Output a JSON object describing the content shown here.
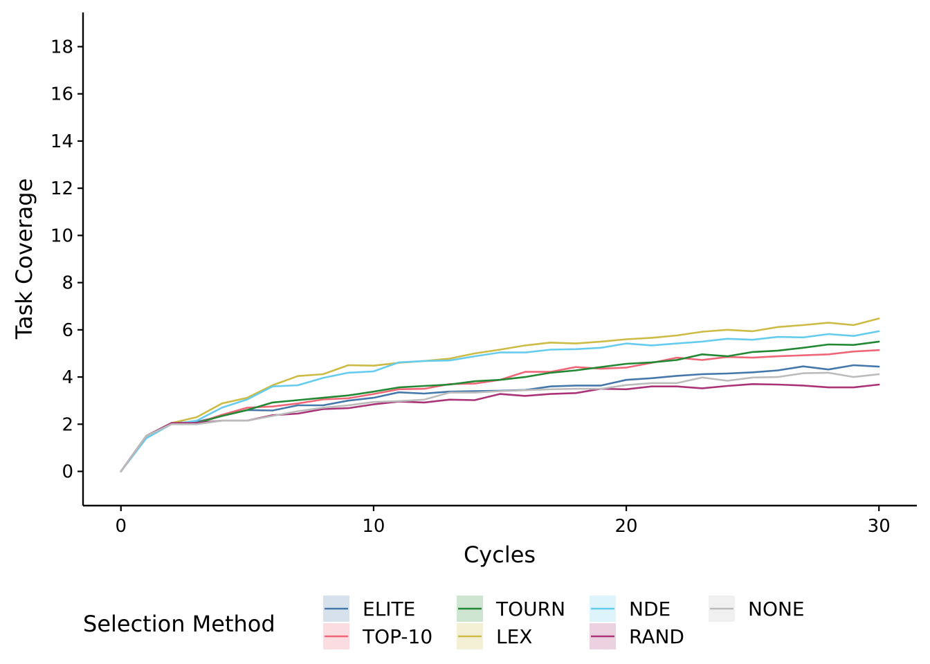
{
  "chart_data": {
    "type": "line",
    "xlabel": "Cycles",
    "ylabel": "Task Coverage",
    "xlim": [
      -1.5,
      31.5
    ],
    "ylim": [
      -1.45,
      19.45
    ],
    "x_ticks": [
      0,
      10,
      20,
      30
    ],
    "y_ticks": [
      0,
      2,
      4,
      6,
      8,
      10,
      12,
      14,
      16,
      18
    ],
    "grid": false,
    "legend_title": "Selection Method",
    "legend_position": "bottom",
    "x": [
      0,
      1,
      2,
      3,
      4,
      5,
      6,
      7,
      8,
      9,
      10,
      11,
      12,
      13,
      14,
      15,
      16,
      17,
      18,
      19,
      20,
      21,
      22,
      23,
      24,
      25,
      26,
      27,
      28,
      29,
      30
    ],
    "series": [
      {
        "name": "ELITE",
        "color": "#4477AA",
        "values": [
          0,
          1.5,
          2.05,
          2.1,
          2.35,
          2.6,
          2.58,
          2.8,
          2.8,
          3.0,
          3.12,
          3.35,
          3.3,
          3.38,
          3.4,
          3.42,
          3.45,
          3.6,
          3.64,
          3.64,
          3.88,
          3.95,
          4.05,
          4.12,
          4.15,
          4.2,
          4.28,
          4.45,
          4.32,
          4.5,
          4.44
        ]
      },
      {
        "name": "TOP-10",
        "color": "#EE6677",
        "values": [
          0,
          1.5,
          2.05,
          2.05,
          2.4,
          2.7,
          2.75,
          2.88,
          3.05,
          3.1,
          3.28,
          3.48,
          3.5,
          3.7,
          3.72,
          3.88,
          4.22,
          4.22,
          4.42,
          4.35,
          4.4,
          4.6,
          4.82,
          4.72,
          4.85,
          4.82,
          4.88,
          4.92,
          4.96,
          5.08,
          5.14
        ]
      },
      {
        "name": "TOURN",
        "color": "#228833",
        "values": [
          0,
          1.5,
          2.05,
          2.05,
          2.35,
          2.6,
          2.92,
          3.02,
          3.12,
          3.22,
          3.38,
          3.56,
          3.62,
          3.68,
          3.82,
          3.88,
          4.0,
          4.18,
          4.28,
          4.42,
          4.56,
          4.62,
          4.72,
          4.96,
          4.88,
          5.06,
          5.12,
          5.24,
          5.38,
          5.36,
          5.5
        ]
      },
      {
        "name": "LEX",
        "color": "#CCBB44",
        "values": [
          0,
          1.45,
          2.05,
          2.3,
          2.88,
          3.12,
          3.65,
          4.04,
          4.12,
          4.5,
          4.48,
          4.6,
          4.68,
          4.78,
          5.0,
          5.16,
          5.34,
          5.46,
          5.42,
          5.5,
          5.6,
          5.66,
          5.76,
          5.92,
          6.0,
          5.94,
          6.12,
          6.2,
          6.3,
          6.2,
          6.48
        ]
      },
      {
        "name": "NDE",
        "color": "#66CCEE",
        "values": [
          0,
          1.4,
          2.0,
          2.15,
          2.7,
          3.05,
          3.6,
          3.65,
          3.96,
          4.18,
          4.24,
          4.62,
          4.68,
          4.7,
          4.88,
          5.04,
          5.04,
          5.16,
          5.18,
          5.24,
          5.42,
          5.34,
          5.42,
          5.5,
          5.62,
          5.58,
          5.7,
          5.68,
          5.82,
          5.74,
          5.94
        ]
      },
      {
        "name": "RAND",
        "color": "#AA3377",
        "values": [
          0,
          1.5,
          2.05,
          2.05,
          2.15,
          2.15,
          2.38,
          2.45,
          2.64,
          2.68,
          2.84,
          2.96,
          2.92,
          3.04,
          3.02,
          3.28,
          3.2,
          3.28,
          3.32,
          3.5,
          3.48,
          3.6,
          3.6,
          3.52,
          3.62,
          3.7,
          3.68,
          3.64,
          3.56,
          3.56,
          3.68
        ]
      },
      {
        "name": "NONE",
        "color": "#BBBBBB",
        "values": [
          0,
          1.5,
          2.0,
          2.0,
          2.15,
          2.15,
          2.35,
          2.55,
          2.7,
          2.8,
          2.94,
          2.98,
          3.04,
          3.34,
          3.34,
          3.4,
          3.44,
          3.48,
          3.5,
          3.5,
          3.66,
          3.74,
          3.74,
          3.98,
          3.84,
          3.98,
          4.0,
          4.16,
          4.18,
          4.0,
          4.12
        ]
      }
    ]
  }
}
